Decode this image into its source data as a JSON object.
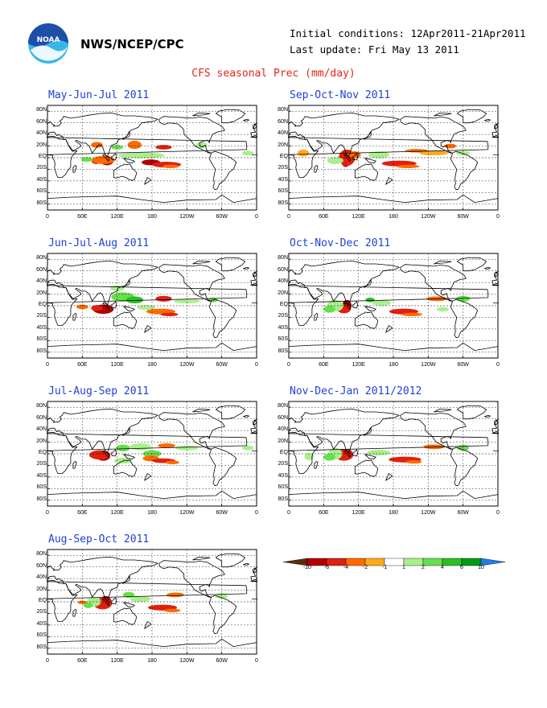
{
  "header": {
    "agency": "NWS/NCEP/CPC",
    "initial_conditions": "Initial conditions: 12Apr2011-21Apr2011",
    "last_update": "Last update: Fri May 13 2011",
    "title": "CFS seasonal Prec (mm/day)"
  },
  "logo": {
    "text": "NOAA",
    "icon": "noaa-logo-icon",
    "colors": [
      "#1e4fa8",
      "#39b6e6",
      "#ffffff"
    ]
  },
  "axes": {
    "lat_labels": [
      "80N",
      "60N",
      "40N",
      "20N",
      "EQ",
      "20S",
      "40S",
      "60S",
      "80S"
    ],
    "lon_labels": [
      "0",
      "60E",
      "120E",
      "180",
      "120W",
      "60W",
      "0"
    ]
  },
  "panels": [
    {
      "title": "May-Jun-Jul 2011"
    },
    {
      "title": "Sep-Oct-Nov 2011"
    },
    {
      "title": "Jun-Jul-Aug 2011"
    },
    {
      "title": "Oct-Nov-Dec 2011"
    },
    {
      "title": "Jul-Aug-Sep 2011"
    },
    {
      "title": "Nov-Dec-Jan 2011/2012"
    },
    {
      "title": "Aug-Sep-Oct 2011"
    }
  ],
  "colorbar": {
    "labels": [
      "-10",
      "-6",
      "-4",
      "-2",
      "-1",
      "1",
      "2",
      "4",
      "6",
      "10"
    ],
    "colors": [
      "#5c2b0e",
      "#b30000",
      "#e02010",
      "#ff6a00",
      "#ffaa1a",
      "#ffffff",
      "#a8f08c",
      "#66e04a",
      "#28c022",
      "#009a10",
      "#1e7de8"
    ]
  }
}
